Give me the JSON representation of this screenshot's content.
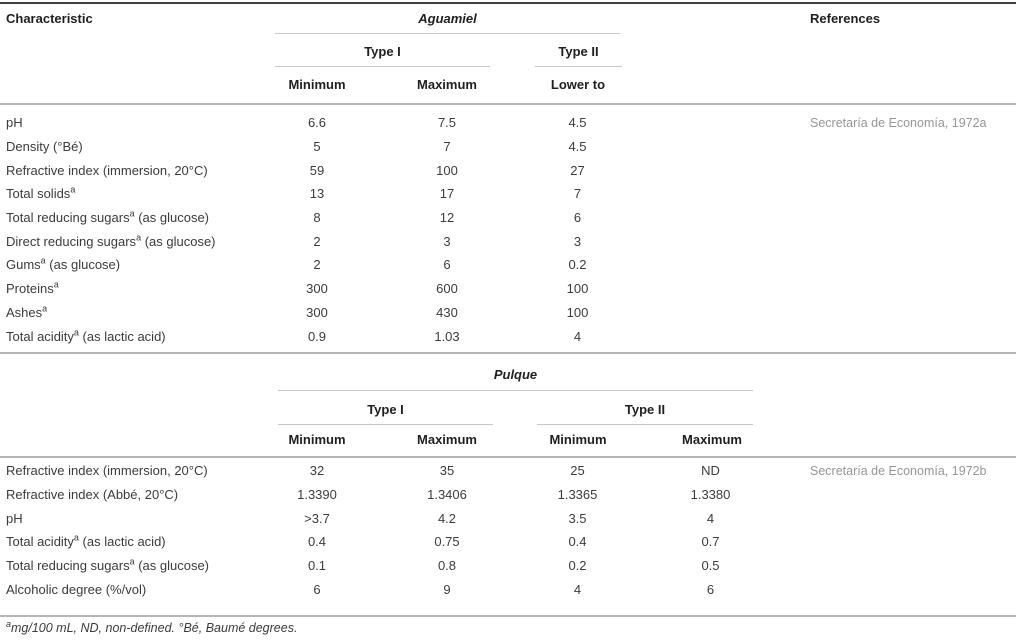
{
  "header": {
    "characteristic": "Characteristic",
    "references": "References"
  },
  "aguamiel": {
    "title": "Aguamiel",
    "type1": "Type I",
    "type2": "Type II",
    "col_min": "Minimum",
    "col_max": "Maximum",
    "col_lower": "Lower to",
    "reference": "Secretaría de Economía, 1972a",
    "rows": [
      {
        "label": "pH",
        "sup": "",
        "suffix": "",
        "values": [
          "6.6",
          "7.5",
          "4.5"
        ]
      },
      {
        "label": "Density (°Bé)",
        "sup": "",
        "suffix": "",
        "values": [
          "5",
          "7",
          "4.5"
        ]
      },
      {
        "label": "Refractive index (immersion, 20°C)",
        "sup": "",
        "suffix": "",
        "values": [
          "59",
          "100",
          "27"
        ]
      },
      {
        "label": "Total solids",
        "sup": "a",
        "suffix": "",
        "values": [
          "13",
          "17",
          "7"
        ]
      },
      {
        "label": "Total reducing sugars",
        "sup": "a",
        "suffix": " (as glucose)",
        "values": [
          "8",
          "12",
          "6"
        ]
      },
      {
        "label": "Direct reducing sugars",
        "sup": "a",
        "suffix": " (as glucose)",
        "values": [
          "2",
          "3",
          "3"
        ]
      },
      {
        "label": "Gums",
        "sup": "a",
        "suffix": " (as glucose)",
        "values": [
          "2",
          "6",
          "0.2"
        ]
      },
      {
        "label": "Proteins",
        "sup": "a",
        "suffix": "",
        "values": [
          "300",
          "600",
          "100"
        ]
      },
      {
        "label": "Ashes",
        "sup": "a",
        "suffix": "",
        "values": [
          "300",
          "430",
          "100"
        ]
      },
      {
        "label": "Total acidity",
        "sup": "a",
        "suffix": " (as lactic acid)",
        "values": [
          "0.9",
          "1.03",
          "4"
        ]
      }
    ]
  },
  "pulque": {
    "title": "Pulque",
    "type1": "Type I",
    "type2": "Type II",
    "col_min1": "Minimum",
    "col_max1": "Maximum",
    "col_min2": "Minimum",
    "col_max2": "Maximum",
    "reference": "Secretaría de Economía, 1972b",
    "rows": [
      {
        "label": "Refractive index (immersion, 20°C)",
        "sup": "",
        "suffix": "",
        "values": [
          "32",
          "35",
          "25",
          "ND"
        ]
      },
      {
        "label": "Refractive index (Abbé, 20°C)",
        "sup": "",
        "suffix": "",
        "values": [
          "1.3390",
          "1.3406",
          "1.3365",
          "1.3380"
        ]
      },
      {
        "label": "pH",
        "sup": "",
        "suffix": "",
        "values": [
          ">3.7",
          "4.2",
          "3.5",
          "4"
        ]
      },
      {
        "label": "Total acidity",
        "sup": "a",
        "suffix": " (as lactic acid)",
        "values": [
          "0.4",
          "0.75",
          "0.4",
          "0.7"
        ]
      },
      {
        "label": "Total reducing sugars",
        "sup": "a",
        "suffix": " (as glucose)",
        "values": [
          "0.1",
          "0.8",
          "0.2",
          "0.5"
        ]
      },
      {
        "label": "Alcoholic degree (%/vol)",
        "sup": "",
        "suffix": "",
        "values": [
          "6",
          "9",
          "4",
          "6"
        ]
      }
    ]
  },
  "footnote": {
    "sup": "a",
    "text": "mg/100 mL, ND, non-defined. °Bé, Baumé degrees."
  },
  "colors": {
    "top_rule": "#3d3d3d",
    "gray_rule": "#b5b5b5",
    "spanner_rule": "#c6c6c6",
    "header_text": "#1f1f1f",
    "body_text": "#3b3b3b",
    "reference_text": "#969696"
  }
}
